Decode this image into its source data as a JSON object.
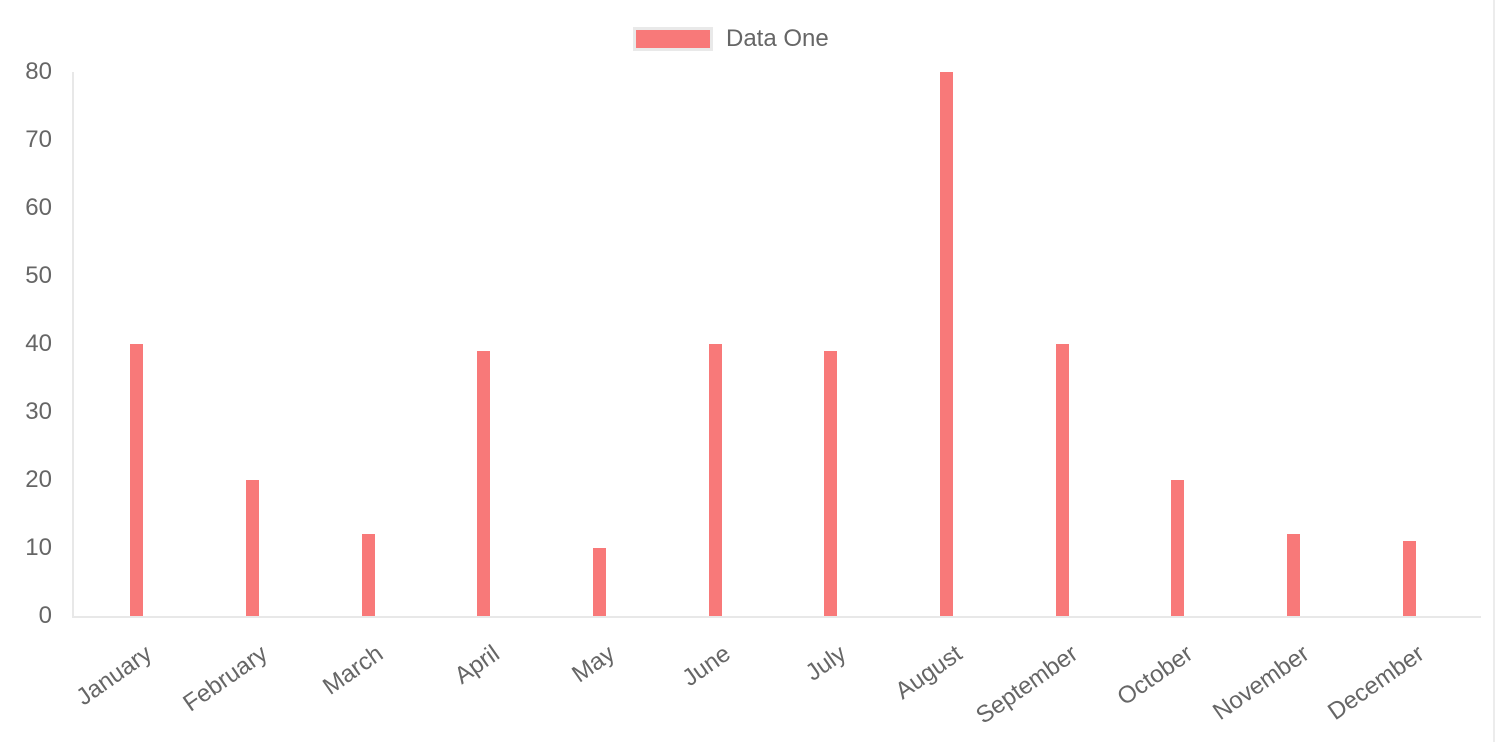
{
  "chart_data": {
    "type": "bar",
    "title": "",
    "categories": [
      "January",
      "February",
      "March",
      "April",
      "May",
      "June",
      "July",
      "August",
      "September",
      "October",
      "November",
      "December"
    ],
    "series": [
      {
        "name": "Data One",
        "color": "#f87979",
        "values": [
          40,
          20,
          12,
          39,
          10,
          40,
          39,
          80,
          40,
          20,
          12,
          11
        ]
      }
    ],
    "xlabel": "",
    "ylabel": "",
    "ylim": [
      0,
      80
    ],
    "yticks": [
      0,
      10,
      20,
      30,
      40,
      50,
      60,
      70,
      80
    ],
    "grid": "off",
    "legend_position": "top",
    "x_label_rotation_deg": -35
  },
  "legend": {
    "items": [
      {
        "label": "Data One",
        "swatch_color": "#f87979"
      }
    ]
  },
  "colors": {
    "bar_fill": "#f87979",
    "axis_line": "#e8e8e8",
    "tick_label_text": "#666666",
    "legend_swatch_border": "#e9e9e9",
    "page_right_border": "#ececec",
    "background": "#ffffff"
  }
}
